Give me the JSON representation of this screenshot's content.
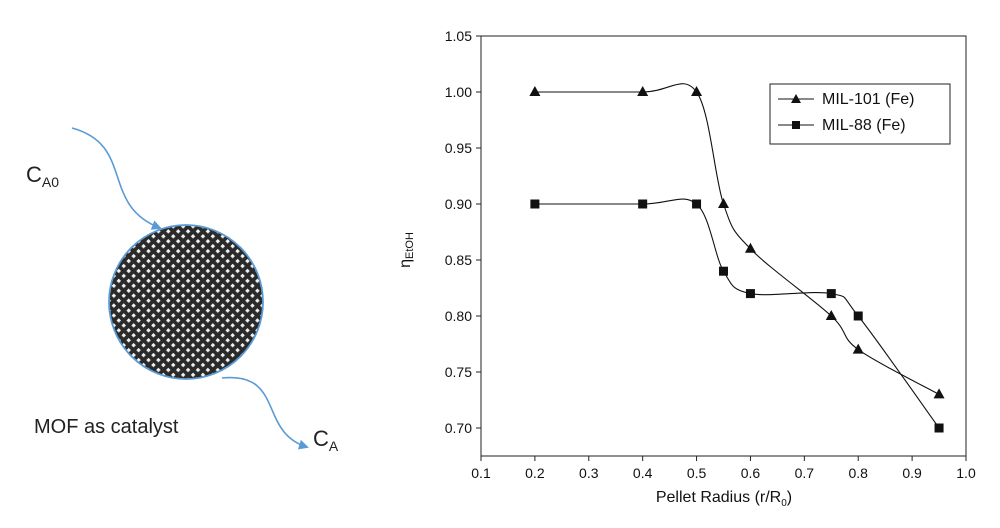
{
  "diagram": {
    "inlet_label": "C",
    "inlet_subscript": "A0",
    "outlet_label": "C",
    "outlet_subscript": "A",
    "caption": "MOF as catalyst",
    "arrow_color": "#5b9bd5"
  },
  "chart_data": {
    "type": "line",
    "xlabel": "Pellet Radius (r/R",
    "xlabel_subscript": "0",
    "xlabel_suffix": ")",
    "ylabel": "η",
    "ylabel_subscript": "EtOH",
    "xlim": [
      0.1,
      1.0
    ],
    "ylim": [
      0.675,
      1.05
    ],
    "x_ticks": [
      0.1,
      0.2,
      0.3,
      0.4,
      0.5,
      0.6,
      0.7,
      0.8,
      0.9,
      1.0
    ],
    "x_tick_labels": [
      "0.1",
      "0.2",
      "0.3",
      "0.4",
      "0.5",
      "0.6",
      "0.7",
      "0.8",
      "0.9",
      "1.0"
    ],
    "y_ticks": [
      0.7,
      0.75,
      0.8,
      0.85,
      0.9,
      0.95,
      1.0,
      1.05
    ],
    "y_tick_labels": [
      "0.70",
      "0.75",
      "0.80",
      "0.85",
      "0.90",
      "0.95",
      "1.00",
      "1.05"
    ],
    "legend_position": "top-right",
    "grid": false,
    "series": [
      {
        "name": "MIL-101 (Fe)",
        "marker": "triangle",
        "x": [
          0.2,
          0.4,
          0.5,
          0.55,
          0.6,
          0.75,
          0.8,
          0.95
        ],
        "y": [
          1.0,
          1.0,
          1.0,
          0.9,
          0.86,
          0.8,
          0.77,
          0.73
        ]
      },
      {
        "name": "MIL-88 (Fe)",
        "marker": "square",
        "x": [
          0.2,
          0.4,
          0.5,
          0.55,
          0.6,
          0.75,
          0.8,
          0.95
        ],
        "y": [
          0.9,
          0.9,
          0.9,
          0.84,
          0.82,
          0.82,
          0.8,
          0.7
        ]
      }
    ]
  }
}
